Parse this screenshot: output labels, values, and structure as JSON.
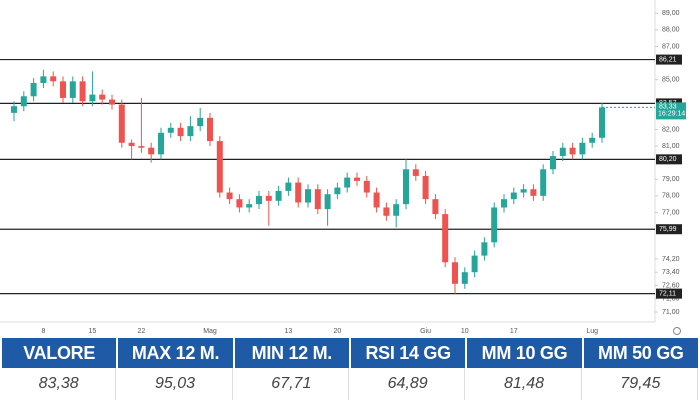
{
  "chart_data": {
    "type": "candlestick",
    "categories": [
      null,
      null,
      null,
      "8",
      null,
      null,
      null,
      null,
      "15",
      null,
      null,
      null,
      null,
      "22",
      null,
      null,
      null,
      null,
      null,
      null,
      "Mag",
      null,
      null,
      null,
      null,
      null,
      null,
      null,
      "13",
      null,
      null,
      null,
      null,
      "20",
      null,
      null,
      null,
      null,
      null,
      null,
      null,
      null,
      "Giu",
      null,
      null,
      null,
      "10",
      null,
      null,
      null,
      null,
      "17",
      null,
      null,
      null,
      null,
      null,
      null,
      null,
      "Lug",
      null
    ],
    "open": [
      83.0,
      83.4,
      84.0,
      84.8,
      85.2,
      84.9,
      83.9,
      84.9,
      83.7,
      84.1,
      83.8,
      83.5,
      81.2,
      81.0,
      80.9,
      80.5,
      81.8,
      82.1,
      81.6,
      82.2,
      82.7,
      81.3,
      78.2,
      77.8,
      77.3,
      77.5,
      78.0,
      77.7,
      78.3,
      78.8,
      77.6,
      78.4,
      77.2,
      78.1,
      78.5,
      79.1,
      78.9,
      78.2,
      77.3,
      76.8,
      77.5,
      79.6,
      79.2,
      77.8,
      76.9,
      74.0,
      72.7,
      73.4,
      74.4,
      75.2,
      77.3,
      77.8,
      78.2,
      78.4,
      78.0,
      79.6,
      80.4,
      80.9,
      80.5,
      81.2,
      81.5
    ],
    "high": [
      83.7,
      84.3,
      85.1,
      85.6,
      85.5,
      85.2,
      85.2,
      85.2,
      85.5,
      84.4,
      84.1,
      83.8,
      81.4,
      83.9,
      81.2,
      82.1,
      82.4,
      82.4,
      82.8,
      83.3,
      83.0,
      81.6,
      78.5,
      78.1,
      77.8,
      78.3,
      78.3,
      78.6,
      79.1,
      79.1,
      78.7,
      78.7,
      78.4,
      78.8,
      79.4,
      79.4,
      79.2,
      78.5,
      77.6,
      77.8,
      80.2,
      79.9,
      79.5,
      78.1,
      77.2,
      74.3,
      73.7,
      74.7,
      75.5,
      77.6,
      78.1,
      78.5,
      78.7,
      78.7,
      79.9,
      80.7,
      81.2,
      81.2,
      81.5,
      81.8,
      83.6
    ],
    "low": [
      82.5,
      83.1,
      83.7,
      84.5,
      84.6,
      83.6,
      83.6,
      83.4,
      83.4,
      83.5,
      83.2,
      80.9,
      80.2,
      80.6,
      80.0,
      80.2,
      81.5,
      81.3,
      81.3,
      81.9,
      81.0,
      77.9,
      77.5,
      77.0,
      77.0,
      77.2,
      76.2,
      77.4,
      78.0,
      77.3,
      77.3,
      76.9,
      76.2,
      77.8,
      78.2,
      78.6,
      77.9,
      77.0,
      76.5,
      76.1,
      77.2,
      78.9,
      77.5,
      76.6,
      73.7,
      72.1,
      72.4,
      73.1,
      74.1,
      74.9,
      77.0,
      77.5,
      77.9,
      77.7,
      77.7,
      79.3,
      80.1,
      80.2,
      80.2,
      80.9,
      81.2
    ],
    "close": [
      83.4,
      84.0,
      84.8,
      85.2,
      84.9,
      83.9,
      84.9,
      83.7,
      84.1,
      83.8,
      83.5,
      81.2,
      81.0,
      80.9,
      80.5,
      81.8,
      82.1,
      81.6,
      82.2,
      82.7,
      81.3,
      78.2,
      77.8,
      77.3,
      77.5,
      78.0,
      77.7,
      78.3,
      78.8,
      77.6,
      78.4,
      77.2,
      78.1,
      78.5,
      79.1,
      78.9,
      78.2,
      77.3,
      76.8,
      77.5,
      79.6,
      79.2,
      77.8,
      76.9,
      74.0,
      72.7,
      73.4,
      74.4,
      75.2,
      77.3,
      77.8,
      78.2,
      78.4,
      78.0,
      79.6,
      80.4,
      80.9,
      80.5,
      81.2,
      81.5,
      83.33
    ],
    "up_color": "#26a69a",
    "down_color": "#ef5350",
    "ylim": [
      70.4,
      89.8
    ],
    "yticks": [
      {
        "value": 89,
        "label": "89,00"
      },
      {
        "value": 88,
        "label": "88,00"
      },
      {
        "value": 87,
        "label": "87,00"
      },
      {
        "value": 85,
        "label": "85,00"
      },
      {
        "value": 82,
        "label": "82,00"
      },
      {
        "value": 81,
        "label": "81,00"
      },
      {
        "value": 79,
        "label": "79,00"
      },
      {
        "value": 78,
        "label": "78,00"
      },
      {
        "value": 77,
        "label": "77,00"
      },
      {
        "value": 74.2,
        "label": "74,20"
      },
      {
        "value": 73.4,
        "label": "73,40"
      },
      {
        "value": 72.6,
        "label": "72,60"
      },
      {
        "value": 71.8,
        "label": "71,80"
      },
      {
        "value": 71,
        "label": "71,00"
      }
    ],
    "levels": [
      {
        "value": 86.21,
        "label": "86,21"
      },
      {
        "value": 83.57,
        "label": "83,57"
      },
      {
        "value": 80.2,
        "label": "80,20"
      },
      {
        "value": 75.99,
        "label": "75,99"
      },
      {
        "value": 72.11,
        "label": "72,11"
      }
    ],
    "level_color": "#222",
    "last_price": {
      "value": 83.33,
      "label": "83,33",
      "time": "16:29:14"
    }
  },
  "table": {
    "headers": [
      "VALORE",
      "MAX 12 M.",
      "MIN 12 M.",
      "RSI 14 GG",
      "MM 10 GG",
      "MM 50 GG"
    ],
    "values": [
      "83,38",
      "95,03",
      "67,71",
      "64,89",
      "81,48",
      "79,45"
    ]
  }
}
